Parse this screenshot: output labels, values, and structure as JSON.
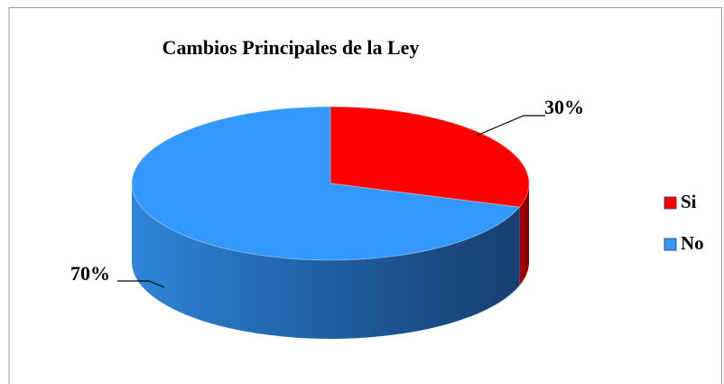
{
  "chart_data": {
    "type": "pie",
    "title": "Cambios Principales de la Ley",
    "categories": [
      "Si",
      "No"
    ],
    "values": [
      30,
      70
    ],
    "value_labels": [
      "30%",
      "70%"
    ],
    "colors": [
      "#ff0000",
      "#3399ff"
    ],
    "legend": "right"
  }
}
